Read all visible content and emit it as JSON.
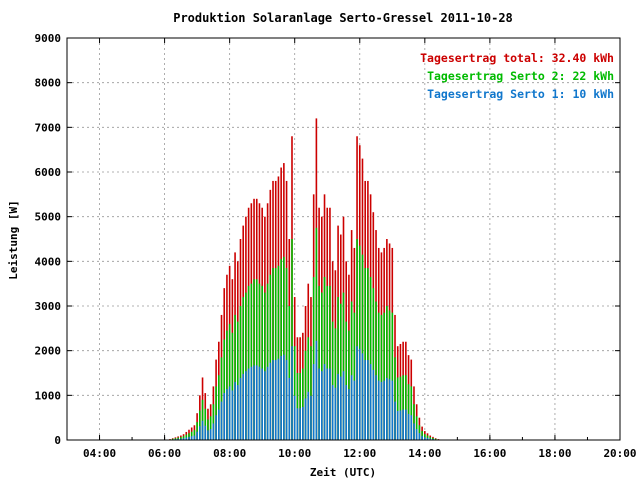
{
  "chart_data": {
    "type": "bar",
    "title": "Produktion Solaranlage Serto-Gressel 2011-10-28",
    "xlabel": "Zeit (UTC)",
    "ylabel": "Leistung [W]",
    "xlim": [
      "03:00",
      "20:00"
    ],
    "ylim": [
      0,
      9000
    ],
    "x_ticks": [
      "04:00",
      "06:00",
      "08:00",
      "10:00",
      "12:00",
      "14:00",
      "16:00",
      "18:00",
      "20:00"
    ],
    "y_ticks": [
      "0",
      "1000",
      "2000",
      "3000",
      "4000",
      "5000",
      "6000",
      "7000",
      "8000",
      "9000"
    ],
    "grid": true,
    "legend_position": "top-right",
    "legend": [
      {
        "label": "Tagesertrag total: 32.40 kWh",
        "color": "#cc0000"
      },
      {
        "label": "Tagesertrag Serto 2: 22 kWh",
        "color": "#00bb00"
      },
      {
        "label": "Tagesertrag Serto 1: 10 kWh",
        "color": "#1177cc"
      }
    ],
    "x": [
      "06:10",
      "06:15",
      "06:20",
      "06:25",
      "06:30",
      "06:35",
      "06:40",
      "06:45",
      "06:50",
      "06:55",
      "07:00",
      "07:05",
      "07:10",
      "07:15",
      "07:20",
      "07:25",
      "07:30",
      "07:35",
      "07:40",
      "07:45",
      "07:50",
      "07:55",
      "08:00",
      "08:05",
      "08:10",
      "08:15",
      "08:20",
      "08:25",
      "08:30",
      "08:35",
      "08:40",
      "08:45",
      "08:50",
      "08:55",
      "09:00",
      "09:05",
      "09:10",
      "09:15",
      "09:20",
      "09:25",
      "09:30",
      "09:35",
      "09:40",
      "09:45",
      "09:50",
      "09:55",
      "10:00",
      "10:05",
      "10:10",
      "10:15",
      "10:20",
      "10:25",
      "10:30",
      "10:35",
      "10:40",
      "10:45",
      "10:50",
      "10:55",
      "11:00",
      "11:05",
      "11:10",
      "11:15",
      "11:20",
      "11:25",
      "11:30",
      "11:35",
      "11:40",
      "11:45",
      "11:50",
      "11:55",
      "12:00",
      "12:05",
      "12:10",
      "12:15",
      "12:20",
      "12:25",
      "12:30",
      "12:35",
      "12:40",
      "12:45",
      "12:50",
      "12:55",
      "13:00",
      "13:05",
      "13:10",
      "13:15",
      "13:20",
      "13:25",
      "13:30",
      "13:35",
      "13:40",
      "13:45",
      "13:50",
      "13:55",
      "14:00",
      "14:05",
      "14:10",
      "14:15",
      "14:20",
      "14:25",
      "14:30",
      "14:35",
      "14:40",
      "14:45",
      "14:50",
      "14:55",
      "15:00",
      "15:05",
      "15:10",
      "15:15",
      "15:20",
      "15:25",
      "15:30",
      "15:35",
      "15:40",
      "15:45",
      "15:50",
      "15:55",
      "16:00",
      "16:05",
      "16:10"
    ],
    "series": [
      {
        "name": "Tagesertrag total: 32.40 kWh",
        "color": "#cc0000",
        "values": [
          20,
          40,
          60,
          80,
          100,
          130,
          180,
          230,
          280,
          330,
          600,
          1000,
          1400,
          1050,
          700,
          800,
          1200,
          1800,
          2200,
          2800,
          3400,
          3700,
          3900,
          3600,
          4200,
          4000,
          4500,
          4800,
          5000,
          5200,
          5300,
          5400,
          5400,
          5300,
          5200,
          5000,
          5300,
          5600,
          5800,
          5800,
          5900,
          6100,
          6200,
          5800,
          4500,
          6800,
          3200,
          2300,
          2300,
          2400,
          3000,
          3500,
          3200,
          5500,
          7200,
          5200,
          5000,
          5500,
          5200,
          5200,
          4000,
          3800,
          4800,
          4600,
          5000,
          4000,
          3700,
          4700,
          4300,
          6800,
          6600,
          6300,
          5800,
          5800,
          5500,
          5100,
          4700,
          4300,
          4200,
          4300,
          4500,
          4400,
          4300,
          2800,
          2100,
          2150,
          2200,
          2200,
          1900,
          1800,
          1200,
          800,
          500,
          300,
          200,
          150,
          100,
          70,
          40,
          20,
          10,
          6,
          4,
          2,
          1,
          0,
          0,
          0,
          0,
          0,
          0,
          0,
          0,
          0,
          0,
          0,
          0,
          0,
          0,
          0,
          0
        ]
      },
      {
        "name": "Tagesertrag Serto 2: 22 kWh",
        "color": "#00bb00",
        "values": [
          13,
          27,
          40,
          53,
          66,
          86,
          120,
          150,
          185,
          220,
          400,
          660,
          900,
          700,
          460,
          530,
          800,
          1200,
          1450,
          1850,
          2250,
          2450,
          2600,
          2400,
          2800,
          2650,
          3000,
          3200,
          3300,
          3450,
          3500,
          3600,
          3600,
          3500,
          3450,
          3300,
          3500,
          3700,
          3850,
          3850,
          3900,
          4050,
          4100,
          3850,
          3000,
          4500,
          2100,
          1500,
          1500,
          1600,
          2000,
          2300,
          2100,
          3650,
          4750,
          3450,
          3300,
          3650,
          3450,
          3450,
          2650,
          2500,
          3200,
          3050,
          3300,
          2650,
          2450,
          3100,
          2850,
          4500,
          4350,
          4150,
          3850,
          3850,
          3650,
          3400,
          3100,
          2850,
          2800,
          2850,
          3000,
          2900,
          2850,
          1850,
          1400,
          1420,
          1450,
          1450,
          1250,
          1200,
          800,
          530,
          330,
          200,
          130,
          100,
          66,
          46,
          26,
          13,
          7,
          4,
          3,
          1,
          0,
          0,
          0,
          0,
          0,
          0,
          0,
          0,
          0,
          0,
          0,
          0,
          0,
          0,
          0,
          0,
          0
        ]
      },
      {
        "name": "Tagesertrag Serto 1: 10 kWh",
        "color": "#1177cc",
        "values": [
          6,
          12,
          18,
          25,
          30,
          40,
          55,
          70,
          85,
          100,
          185,
          310,
          430,
          320,
          215,
          245,
          370,
          555,
          680,
          860,
          1050,
          1140,
          1200,
          1110,
          1300,
          1230,
          1390,
          1480,
          1540,
          1600,
          1640,
          1670,
          1670,
          1640,
          1600,
          1540,
          1640,
          1730,
          1790,
          1790,
          1820,
          1880,
          1910,
          1790,
          1390,
          2100,
          990,
          710,
          710,
          740,
          930,
          1080,
          990,
          1700,
          2220,
          1600,
          1540,
          1700,
          1600,
          1600,
          1230,
          1170,
          1480,
          1420,
          1540,
          1230,
          1140,
          1450,
          1330,
          2100,
          2040,
          1940,
          1790,
          1790,
          1700,
          1570,
          1450,
          1330,
          1300,
          1330,
          1390,
          1360,
          1330,
          860,
          650,
          660,
          680,
          680,
          585,
          555,
          370,
          245,
          155,
          93,
          62,
          46,
          31,
          22,
          12,
          6,
          3,
          2,
          1,
          0,
          0,
          0,
          0,
          0,
          0,
          0,
          0,
          0,
          0,
          0,
          0,
          0,
          0,
          0,
          0,
          0,
          0
        ]
      }
    ]
  }
}
